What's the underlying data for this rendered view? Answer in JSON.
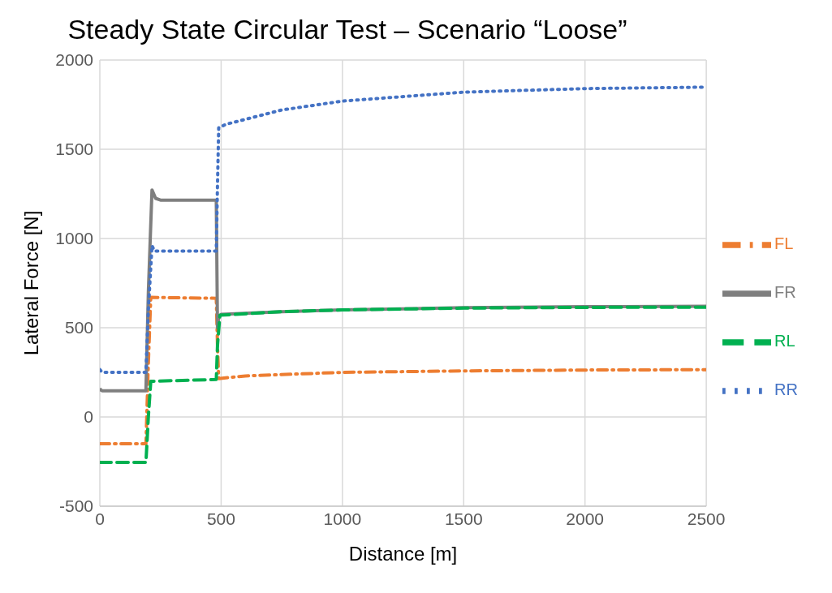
{
  "chart_data": {
    "type": "line",
    "title": "Steady State Circular Test – Scenario “Loose”",
    "xlabel": "Distance [m]",
    "ylabel": "Lateral Force [N]",
    "series": [
      {
        "name": "FL",
        "color": "#ed7d31",
        "line_style": "dashdot",
        "x": [
          0,
          190,
          200,
          210,
          480,
          485,
          490,
          600,
          1000,
          1500,
          2000,
          2500
        ],
        "values": [
          -150,
          -150,
          300,
          670,
          665,
          400,
          215,
          230,
          250,
          258,
          263,
          265
        ]
      },
      {
        "name": "FR",
        "color": "#7f7f7f",
        "line_style": "solid",
        "x": [
          0,
          5,
          10,
          190,
          200,
          215,
          230,
          250,
          480,
          485,
          490,
          500,
          750,
          1000,
          1500,
          2000,
          2500
        ],
        "values": [
          160,
          150,
          147,
          147,
          700,
          1272,
          1225,
          1215,
          1215,
          500,
          560,
          575,
          590,
          600,
          612,
          618,
          620
        ]
      },
      {
        "name": "RL",
        "color": "#00b050",
        "line_style": "dashed",
        "x": [
          0,
          190,
          200,
          210,
          480,
          485,
          495,
          750,
          1000,
          1500,
          2000,
          2500
        ],
        "values": [
          -255,
          -255,
          0,
          200,
          210,
          400,
          570,
          590,
          600,
          610,
          614,
          615
        ]
      },
      {
        "name": "RR",
        "color": "#4472c4",
        "line_style": "dotted",
        "x": [
          0,
          10,
          190,
          200,
          215,
          225,
          480,
          485,
          490,
          520,
          750,
          1000,
          1500,
          2000,
          2500
        ],
        "values": [
          265,
          250,
          250,
          600,
          960,
          930,
          930,
          1300,
          1620,
          1640,
          1720,
          1770,
          1820,
          1840,
          1848
        ]
      }
    ],
    "xlim": [
      0,
      2500
    ],
    "xticks": [
      0,
      500,
      1000,
      1500,
      2000,
      2500
    ],
    "ylim": [
      -500,
      2000
    ],
    "yticks": [
      -500,
      0,
      500,
      1000,
      1500,
      2000
    ],
    "grid": true,
    "legend": "right",
    "marker": "none"
  }
}
